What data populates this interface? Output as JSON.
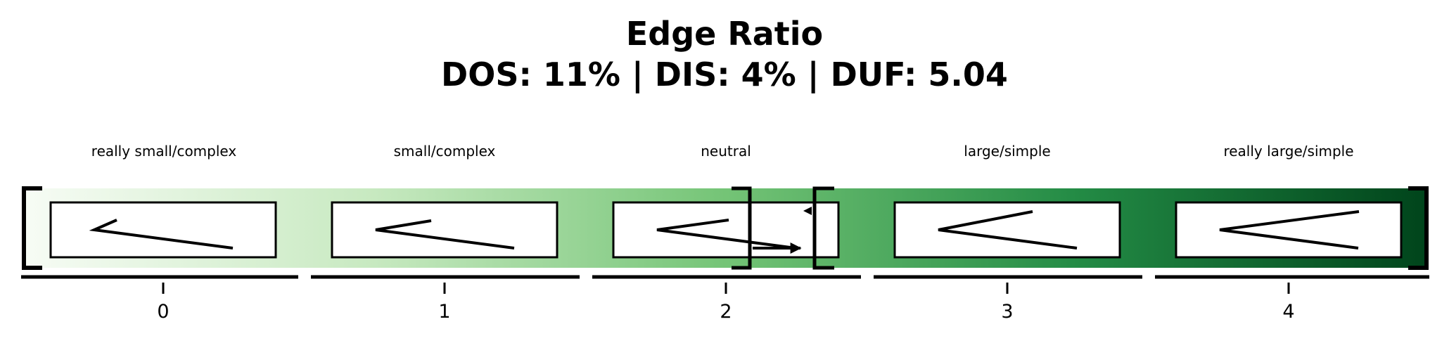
{
  "title": {
    "line1": "Edge Ratio",
    "line2": "DOS: 11% | DIS: 4% | DUF: 5.04"
  },
  "categories": [
    {
      "label": "really small/complex",
      "index": "0"
    },
    {
      "label": "small/complex",
      "index": "1"
    },
    {
      "label": "neutral",
      "index": "2"
    },
    {
      "label": "large/simple",
      "index": "3"
    },
    {
      "label": "really large/simple",
      "index": "4"
    }
  ],
  "colors": {
    "gradient": [
      "#f7fcf5",
      "#c7e9c0",
      "#74c476",
      "#238b45",
      "#00441b"
    ],
    "outline": "#000000",
    "box_fill": "#ffffff"
  }
}
